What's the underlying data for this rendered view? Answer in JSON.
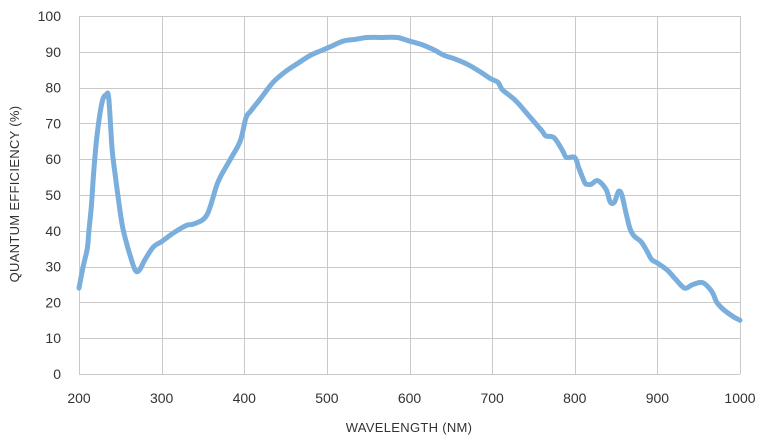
{
  "chart_data": {
    "type": "line",
    "title": "",
    "xlabel": "WAVELENGTH (NM)",
    "ylabel": "QUANTUM EFFICIENCY (%)",
    "xlim": [
      200,
      1000
    ],
    "ylim": [
      0,
      100
    ],
    "xticks": [
      200,
      300,
      400,
      500,
      600,
      700,
      800,
      900,
      1000
    ],
    "yticks": [
      0,
      10,
      20,
      30,
      40,
      50,
      60,
      70,
      80,
      90,
      100
    ],
    "grid": true,
    "legend": "none",
    "line_color": "#7aaedc",
    "grid_color": "#c9c9c9",
    "series": [
      {
        "x": [
          200,
          205,
          210,
          212,
          215,
          218,
          222,
          228,
          233,
          236,
          240,
          243,
          247,
          252,
          257,
          262,
          268,
          273,
          280,
          290,
          300,
          315,
          330,
          340,
          355,
          368,
          382,
          395,
          402,
          408,
          420,
          435,
          450,
          465,
          480,
          495,
          505,
          520,
          535,
          548,
          565,
          585,
          600,
          615,
          630,
          642,
          655,
          670,
          685,
          698,
          707,
          712,
          720,
          730,
          745,
          760,
          765,
          775,
          785,
          790,
          800,
          805,
          812,
          815,
          820,
          828,
          838,
          843,
          848,
          853,
          857,
          862,
          867,
          872,
          880,
          887,
          893,
          900,
          912,
          922,
          933,
          943,
          955,
          966,
          972,
          980,
          992,
          1000
        ],
        "y": [
          24,
          30,
          35,
          40,
          47,
          57,
          67,
          76,
          78,
          77,
          63,
          57,
          50,
          42,
          37,
          33,
          29,
          29,
          32,
          35.5,
          37,
          39.5,
          41.5,
          42,
          44.5,
          53.5,
          59.5,
          65,
          71.5,
          73.5,
          77,
          81.5,
          84.5,
          86.8,
          89,
          90.5,
          91.5,
          93,
          93.5,
          94,
          94,
          94,
          93,
          92,
          90.5,
          89,
          88,
          86.5,
          84.5,
          82.5,
          81.5,
          79.5,
          78,
          76,
          72,
          68,
          66.5,
          66,
          62.5,
          60.5,
          60.5,
          57.5,
          53.5,
          53,
          53,
          54,
          51.5,
          48,
          48,
          51,
          50,
          45,
          40.5,
          38.5,
          37,
          34.5,
          32,
          31,
          29,
          26.5,
          24,
          25,
          25.5,
          23,
          20,
          18,
          16,
          15
        ]
      }
    ]
  }
}
